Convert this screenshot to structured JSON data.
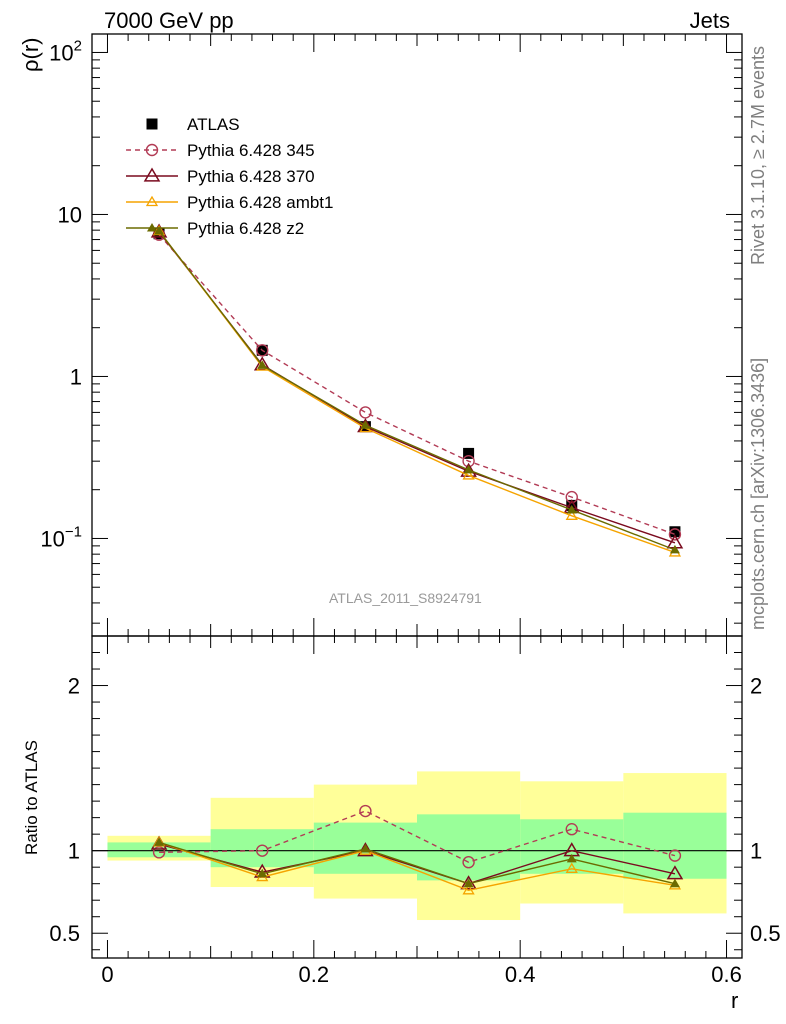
{
  "header": {
    "left": "7000 GeV pp",
    "right": "Jets"
  },
  "side_labels": {
    "rivet": "Rivet 3.1.10, ≥ 2.7M events",
    "mcplots": "mcplots.cern.ch [arXiv:1306.3436]"
  },
  "watermark": "ATLAS_2011_S8924791",
  "colors": {
    "atlas": "#000000",
    "p345": "#b23b55",
    "p370": "#7a0a1e",
    "ambt1": "#f5a400",
    "z2": "#6b6b00",
    "band_inner": "#99ff99",
    "band_outer": "#ffff99"
  },
  "chart_data": [
    {
      "type": "line",
      "panel": "main",
      "ylabel": "ρ(r)",
      "yscale": "log",
      "ylim": [
        0.025,
        130
      ],
      "xlim": [
        -0.015,
        0.615
      ],
      "ytick_labels": [
        "10^-1",
        "1",
        "10",
        "10^2"
      ],
      "legend_placement": "upper-left",
      "x": [
        0.05,
        0.15,
        0.25,
        0.35,
        0.45,
        0.55
      ],
      "series": [
        {
          "name": "ATLAS",
          "key": "atlas",
          "marker": "square",
          "values": [
            7.6,
            1.45,
            0.49,
            0.335,
            0.16,
            0.11
          ]
        },
        {
          "name": "Pythia 6.428 345",
          "key": "p345",
          "marker": "circle",
          "dashed": true,
          "values": [
            7.5,
            1.45,
            0.6,
            0.3,
            0.18,
            0.106
          ]
        },
        {
          "name": "Pythia 6.428 370",
          "key": "p370",
          "marker": "triangle",
          "values": [
            7.8,
            1.18,
            0.49,
            0.26,
            0.155,
            0.094
          ]
        },
        {
          "name": "Pythia 6.428 ambt1",
          "key": "ambt1",
          "marker": "triangle-small",
          "values": [
            7.9,
            1.15,
            0.48,
            0.245,
            0.138,
            0.082
          ]
        },
        {
          "name": "Pythia 6.428 z2",
          "key": "z2",
          "marker": "triangle-filled",
          "values": [
            7.9,
            1.17,
            0.5,
            0.265,
            0.15,
            0.085
          ]
        }
      ]
    },
    {
      "type": "line",
      "panel": "ratio",
      "ylabel": "Ratio to ATLAS",
      "ylim": [
        0.35,
        2.3
      ],
      "xlim": [
        -0.015,
        0.615
      ],
      "xlabel": "r",
      "xtick_labels": [
        "0",
        "0.2",
        "0.4",
        "0.6"
      ],
      "ytick_labels": [
        "0.5",
        "1",
        "2"
      ],
      "x": [
        0.05,
        0.15,
        0.25,
        0.35,
        0.45,
        0.55
      ],
      "bins": [
        [
          0.0,
          0.1
        ],
        [
          0.1,
          0.2
        ],
        [
          0.2,
          0.3
        ],
        [
          0.3,
          0.4
        ],
        [
          0.4,
          0.5
        ],
        [
          0.5,
          0.6
        ]
      ],
      "band_inner": [
        [
          0.96,
          1.05
        ],
        [
          0.9,
          1.13
        ],
        [
          0.86,
          1.17
        ],
        [
          0.82,
          1.22
        ],
        [
          0.86,
          1.19
        ],
        [
          0.83,
          1.23
        ]
      ],
      "band_outer": [
        [
          0.94,
          1.09
        ],
        [
          0.78,
          1.32
        ],
        [
          0.71,
          1.4
        ],
        [
          0.58,
          1.48
        ],
        [
          0.68,
          1.42
        ],
        [
          0.62,
          1.47
        ]
      ],
      "series": [
        {
          "name": "Pythia 6.428 345",
          "key": "p345",
          "values": [
            0.99,
            1.0,
            1.24,
            0.93,
            1.13,
            0.97
          ]
        },
        {
          "name": "Pythia 6.428 370",
          "key": "p370",
          "values": [
            1.04,
            0.87,
            1.0,
            0.8,
            1.0,
            0.86
          ]
        },
        {
          "name": "Pythia 6.428 ambt1",
          "key": "ambt1",
          "values": [
            1.05,
            0.84,
            1.0,
            0.76,
            0.89,
            0.79
          ]
        },
        {
          "name": "Pythia 6.428 z2",
          "key": "z2",
          "values": [
            1.05,
            0.86,
            1.01,
            0.8,
            0.95,
            0.8
          ]
        }
      ]
    }
  ]
}
